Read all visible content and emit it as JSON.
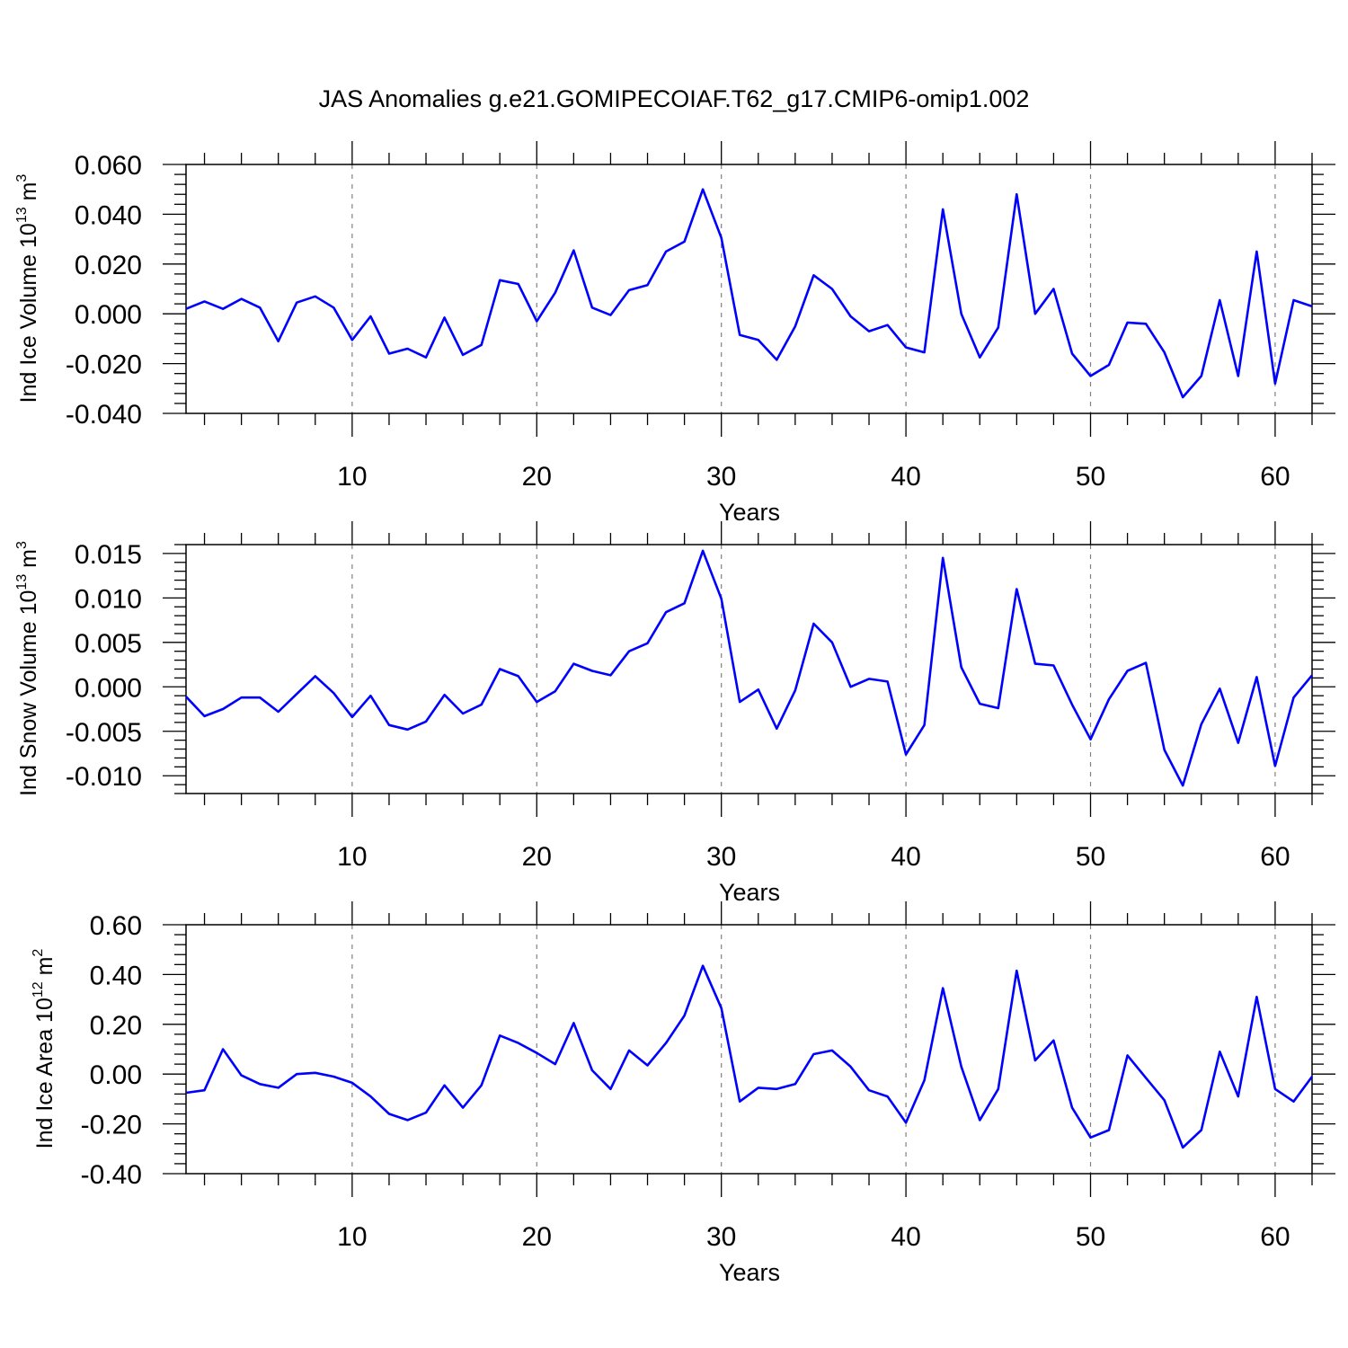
{
  "title": "JAS Anomalies g.e21.GOMIPECOIAF.T62_g17.CMIP6-omip1.002",
  "line_color": "#0000ff",
  "chart_data": [
    {
      "type": "line",
      "ylabel": {
        "text": "Ind Ice Volume 10",
        "exp": "13",
        "unit": " m",
        "unit_exp": "3"
      },
      "xlabel": "Years",
      "xlim": [
        1,
        62
      ],
      "ylim": [
        -0.04,
        0.06
      ],
      "yticks": [
        "-0.040",
        "-0.020",
        "0.000",
        "0.020",
        "0.040",
        "0.060"
      ],
      "ytick_values": [
        -0.04,
        -0.02,
        0,
        0.02,
        0.04,
        0.06
      ],
      "xticks": [
        "10",
        "20",
        "30",
        "40",
        "50",
        "60"
      ],
      "xtick_values": [
        10,
        20,
        30,
        40,
        50,
        60
      ],
      "grid": "dashed vertical lines at major x ticks",
      "x": [
        1,
        2,
        3,
        4,
        5,
        6,
        7,
        8,
        9,
        10,
        11,
        12,
        13,
        14,
        15,
        16,
        17,
        18,
        19,
        20,
        21,
        22,
        23,
        24,
        25,
        26,
        27,
        28,
        29,
        30,
        31,
        32,
        33,
        34,
        35,
        36,
        37,
        38,
        39,
        40,
        41,
        42,
        43,
        44,
        45,
        46,
        47,
        48,
        49,
        50,
        51,
        52,
        53,
        54,
        55,
        56,
        57,
        58,
        59,
        60,
        61,
        62
      ],
      "values": [
        0.002,
        0.005,
        0.002,
        0.006,
        0.0025,
        -0.011,
        0.0045,
        0.007,
        0.0025,
        -0.0105,
        -0.001,
        -0.016,
        -0.014,
        -0.0175,
        -0.0015,
        -0.0165,
        -0.0125,
        0.0135,
        0.012,
        -0.003,
        0.0085,
        0.0255,
        0.0025,
        -0.0005,
        0.0095,
        0.0115,
        0.025,
        0.029,
        0.05,
        0.0305,
        -0.0085,
        -0.0105,
        -0.0185,
        -0.005,
        0.0155,
        0.01,
        -0.001,
        -0.007,
        -0.0045,
        -0.0135,
        -0.0155,
        0.042,
        0.0,
        -0.0175,
        -0.0055,
        0.048,
        0.0,
        0.01,
        -0.016,
        -0.025,
        -0.0205,
        -0.0035,
        -0.004,
        -0.0155,
        -0.0335,
        -0.025,
        0.0055,
        -0.025,
        0.025,
        -0.028,
        0.0055,
        0.003
      ]
    },
    {
      "type": "line",
      "ylabel": {
        "text": "Ind Snow Volume 10",
        "exp": "13",
        "unit": " m",
        "unit_exp": "3"
      },
      "xlabel": "Years",
      "xlim": [
        1,
        62
      ],
      "ylim": [
        -0.012,
        0.016
      ],
      "yticks": [
        "-0.010",
        "-0.005",
        "0.000",
        "0.005",
        "0.010",
        "0.015"
      ],
      "ytick_values": [
        -0.01,
        -0.005,
        0,
        0.005,
        0.01,
        0.015
      ],
      "xticks": [
        "10",
        "20",
        "30",
        "40",
        "50",
        "60"
      ],
      "xtick_values": [
        10,
        20,
        30,
        40,
        50,
        60
      ],
      "grid": "dashed vertical lines at major x ticks",
      "x": [
        1,
        2,
        3,
        4,
        5,
        6,
        7,
        8,
        9,
        10,
        11,
        12,
        13,
        14,
        15,
        16,
        17,
        18,
        19,
        20,
        21,
        22,
        23,
        24,
        25,
        26,
        27,
        28,
        29,
        30,
        31,
        32,
        33,
        34,
        35,
        36,
        37,
        38,
        39,
        40,
        41,
        42,
        43,
        44,
        45,
        46,
        47,
        48,
        49,
        50,
        51,
        52,
        53,
        54,
        55,
        56,
        57,
        58,
        59,
        60,
        61,
        62
      ],
      "values": [
        -0.0011,
        -0.0033,
        -0.0025,
        -0.0012,
        -0.0012,
        -0.0028,
        -0.0008,
        0.0012,
        -0.0007,
        -0.0034,
        -0.001,
        -0.0043,
        -0.0048,
        -0.0039,
        -0.0009,
        -0.003,
        -0.002,
        0.002,
        0.0012,
        -0.0017,
        -0.0005,
        0.0026,
        0.0018,
        0.0013,
        0.004,
        0.0049,
        0.0084,
        0.0094,
        0.0153,
        0.0099,
        -0.0017,
        -0.0003,
        -0.0047,
        -0.0004,
        0.0071,
        0.005,
        0.0,
        0.0009,
        0.0006,
        -0.0076,
        -0.0043,
        0.0145,
        0.0022,
        -0.0019,
        -0.0024,
        0.011,
        0.0026,
        0.0024,
        -0.002,
        -0.0059,
        -0.0014,
        0.0018,
        0.0027,
        -0.0071,
        -0.0111,
        -0.0042,
        -0.0002,
        -0.0063,
        0.0011,
        -0.0089,
        -0.0012,
        0.0013
      ]
    },
    {
      "type": "line",
      "ylabel": {
        "text": "Ind Ice Area 10",
        "exp": "12",
        "unit": " m",
        "unit_exp": "2"
      },
      "xlabel": "Years",
      "xlim": [
        1,
        62
      ],
      "ylim": [
        -0.4,
        0.6
      ],
      "yticks": [
        "-0.40",
        "-0.20",
        "0.00",
        "0.20",
        "0.40",
        "0.60"
      ],
      "ytick_values": [
        -0.4,
        -0.2,
        0,
        0.2,
        0.4,
        0.6
      ],
      "xticks": [
        "10",
        "20",
        "30",
        "40",
        "50",
        "60"
      ],
      "xtick_values": [
        10,
        20,
        30,
        40,
        50,
        60
      ],
      "grid": "dashed vertical lines at major x ticks",
      "x": [
        1,
        2,
        3,
        4,
        5,
        6,
        7,
        8,
        9,
        10,
        11,
        12,
        13,
        14,
        15,
        16,
        17,
        18,
        19,
        20,
        21,
        22,
        23,
        24,
        25,
        26,
        27,
        28,
        29,
        30,
        31,
        32,
        33,
        34,
        35,
        36,
        37,
        38,
        39,
        40,
        41,
        42,
        43,
        44,
        45,
        46,
        47,
        48,
        49,
        50,
        51,
        52,
        53,
        54,
        55,
        56,
        57,
        58,
        59,
        60,
        61,
        62
      ],
      "values": [
        -0.075,
        -0.065,
        0.1,
        -0.005,
        -0.04,
        -0.055,
        0.0,
        0.005,
        -0.01,
        -0.035,
        -0.09,
        -0.16,
        -0.185,
        -0.155,
        -0.045,
        -0.135,
        -0.045,
        0.155,
        0.125,
        0.085,
        0.04,
        0.205,
        0.015,
        -0.06,
        0.095,
        0.035,
        0.125,
        0.235,
        0.435,
        0.265,
        -0.11,
        -0.055,
        -0.06,
        -0.04,
        0.08,
        0.095,
        0.03,
        -0.065,
        -0.09,
        -0.195,
        -0.025,
        0.345,
        0.03,
        -0.185,
        -0.06,
        0.415,
        0.055,
        0.135,
        -0.135,
        -0.255,
        -0.225,
        0.075,
        -0.015,
        -0.105,
        -0.295,
        -0.225,
        0.09,
        -0.09,
        0.31,
        -0.06,
        -0.11,
        -0.01
      ]
    }
  ]
}
